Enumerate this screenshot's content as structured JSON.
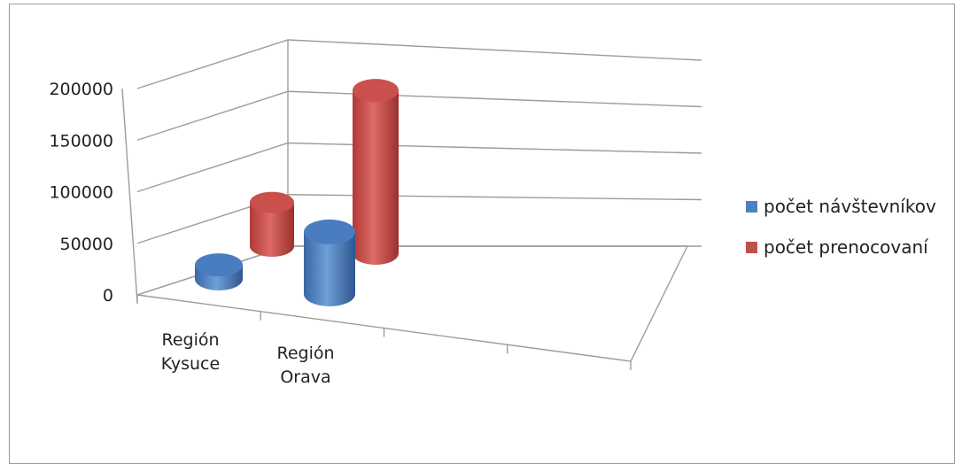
{
  "chart_data": {
    "type": "bar",
    "categories": [
      "Región Kysuce",
      "Región Orava"
    ],
    "category_lines": [
      [
        "Región",
        "Kysuce"
      ],
      [
        "Región",
        "Orava"
      ]
    ],
    "series": [
      {
        "name": "počet návštevníkov",
        "values": [
          14000,
          62000
        ],
        "color": "#4f81bd"
      },
      {
        "name": "počet prenocovaní",
        "values": [
          47000,
          175000
        ],
        "color": "#c0504d"
      }
    ],
    "ylim": [
      0,
      200000
    ],
    "yticks": [
      "0",
      "50000",
      "100000",
      "150000",
      "200000"
    ],
    "grid": true,
    "legend": "right",
    "title": "",
    "xlabel": "",
    "ylabel": ""
  }
}
